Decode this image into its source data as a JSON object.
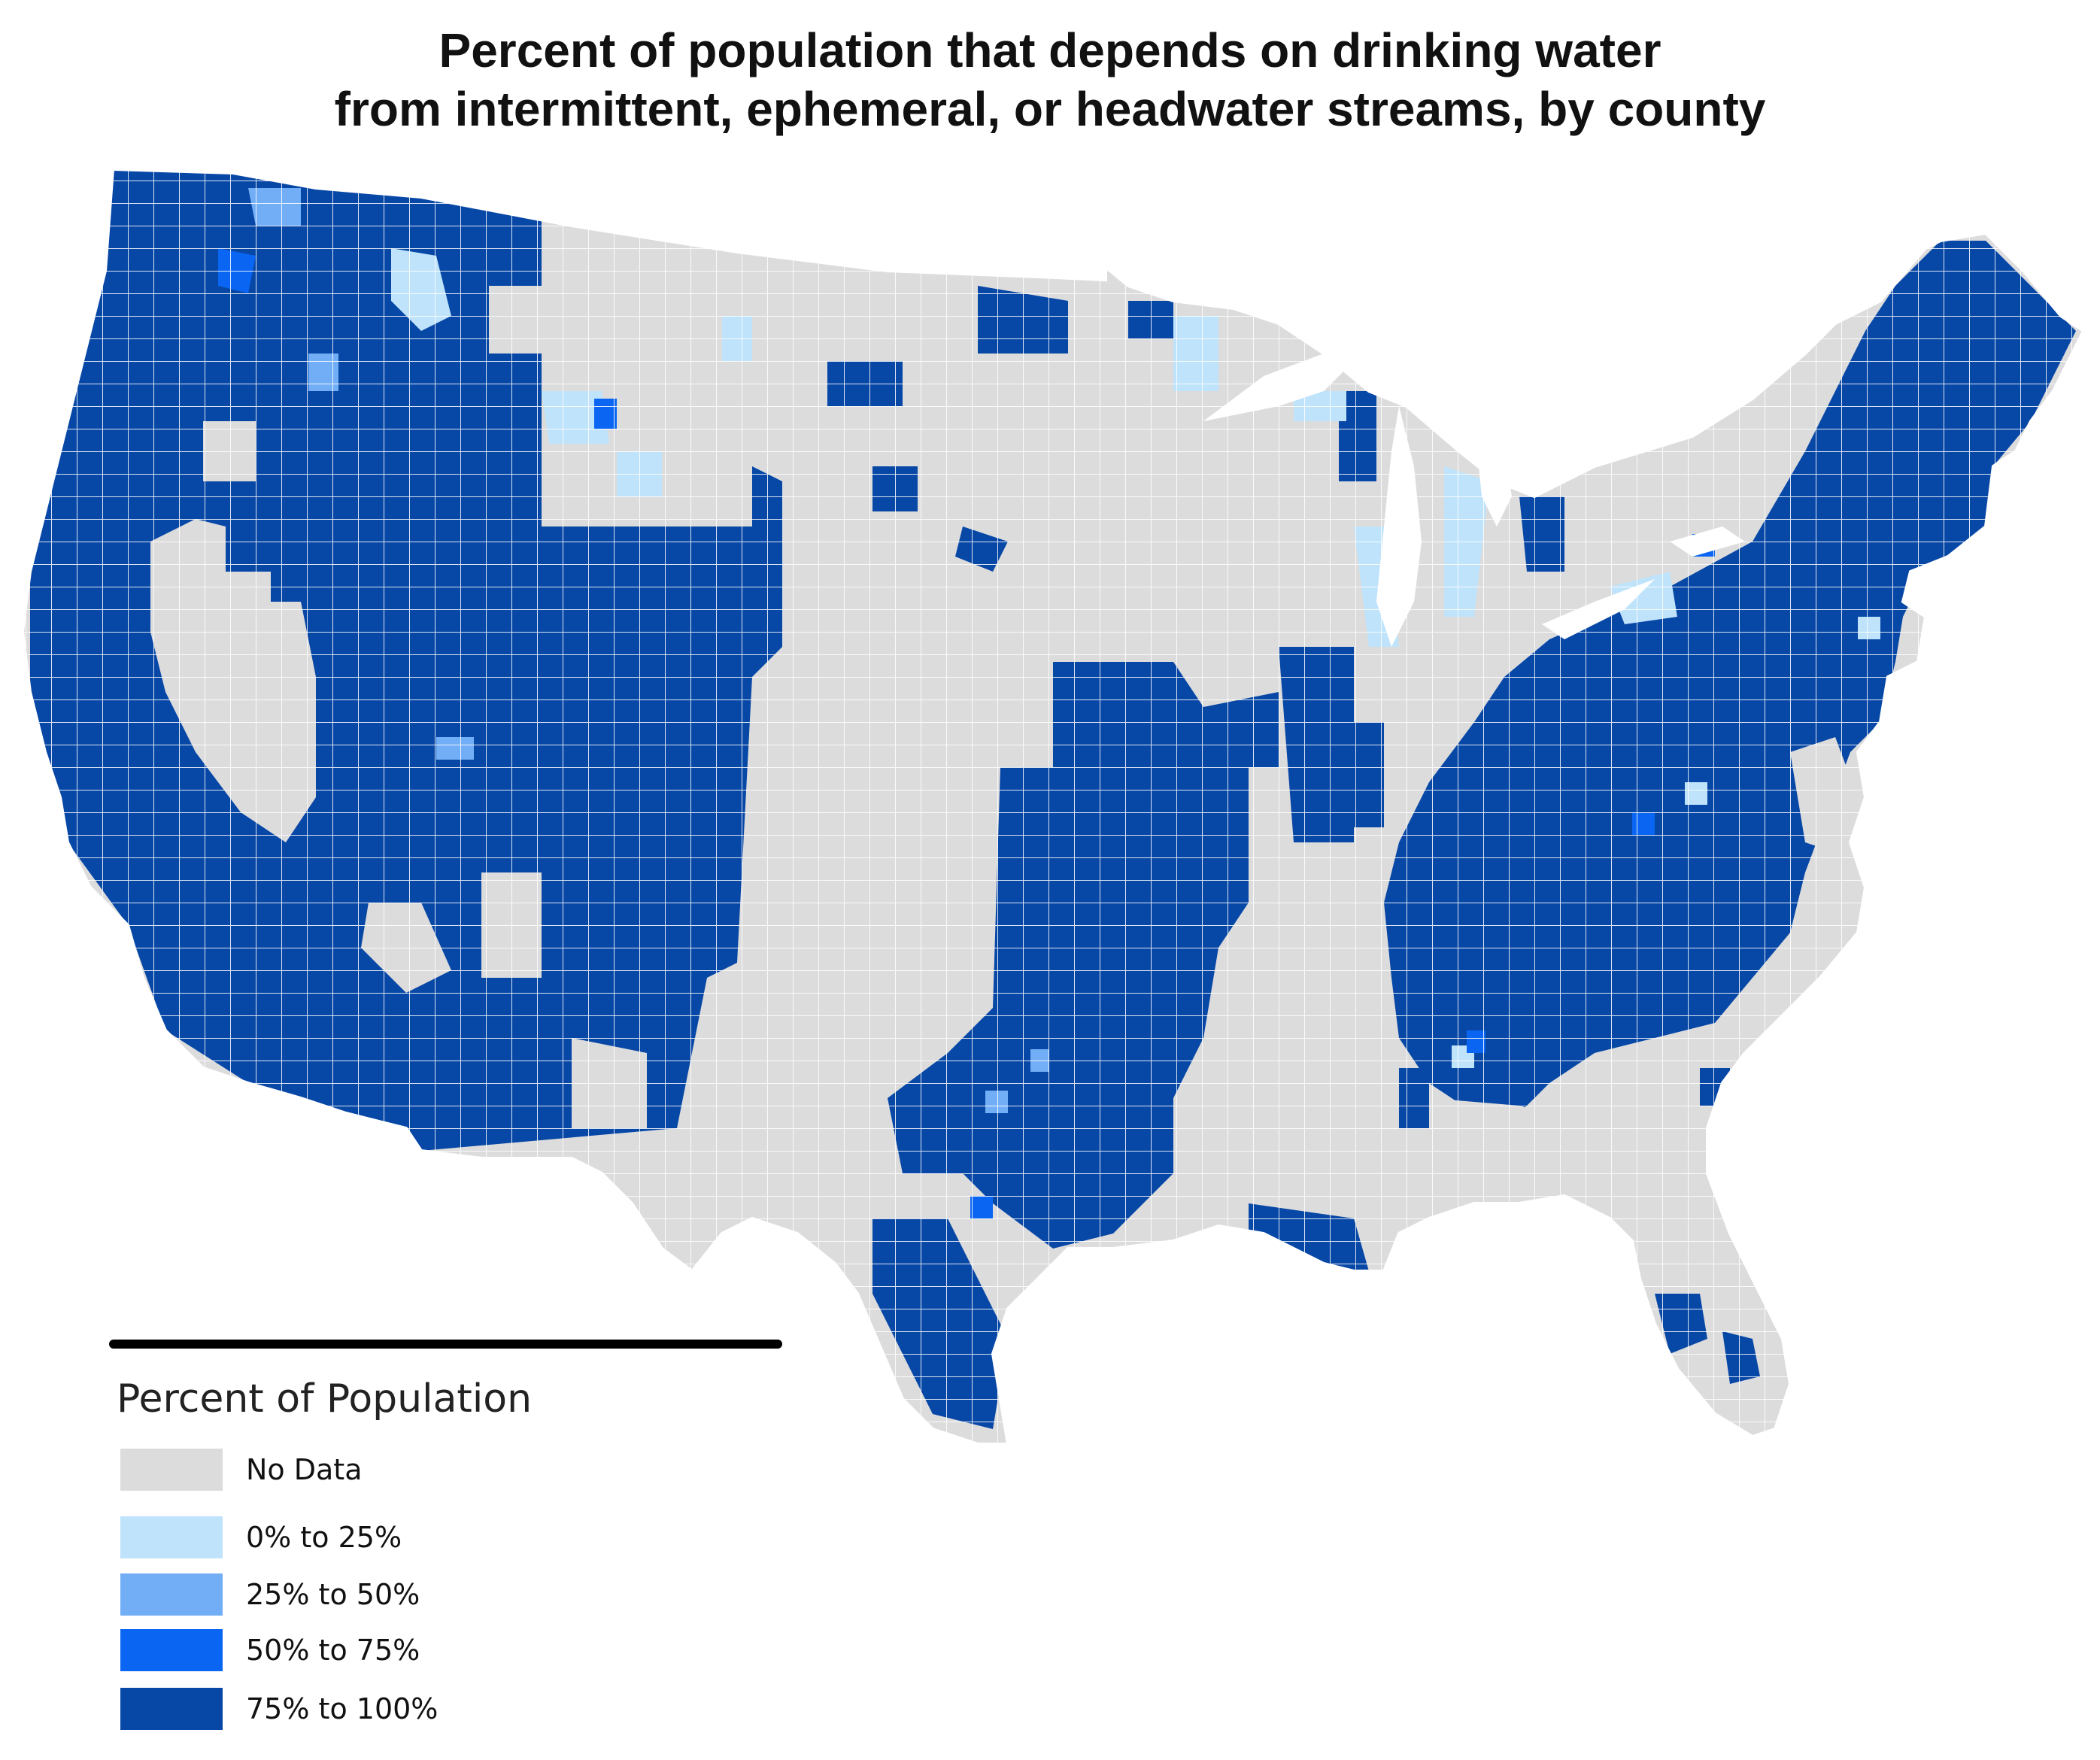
{
  "title": {
    "line1": "Percent of population that depends on drinking water",
    "line2": "from intermittent, ephemeral, or headwater streams, by county"
  },
  "legend": {
    "title": "Percent of Population",
    "items": [
      {
        "label": "No Data",
        "color": "#dcdcdc"
      },
      {
        "label": "0% to 25%",
        "color": "#bfe3fb"
      },
      {
        "label": "25% to 50%",
        "color": "#72aef5"
      },
      {
        "label": "50% to 75%",
        "color": "#0a66f2"
      },
      {
        "label": "75% to 100%",
        "color": "#0747a6"
      }
    ]
  },
  "colors": {
    "no_data": "#dcdcdc",
    "c0_25": "#bfe3fb",
    "c25_50": "#72aef5",
    "c50_75": "#0a66f2",
    "c75_100": "#0747a6",
    "county_border": "#ffffff"
  }
}
